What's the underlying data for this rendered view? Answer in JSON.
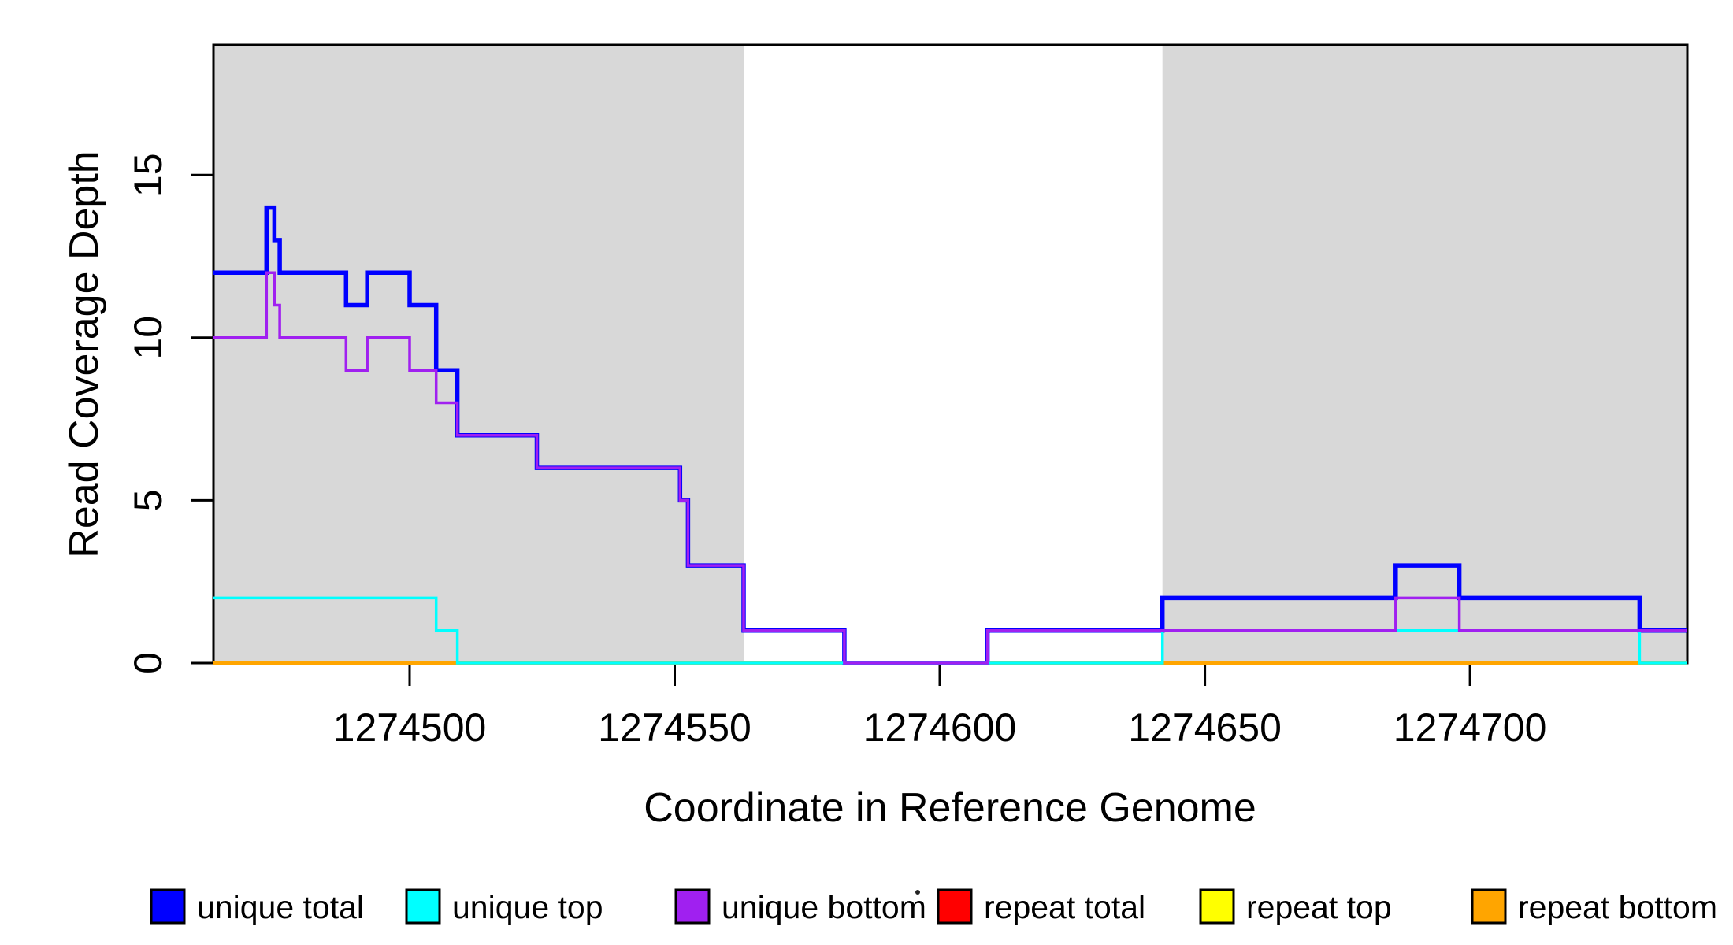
{
  "chart_data": {
    "type": "line",
    "subtype": "step",
    "title": "",
    "xlabel": "Coordinate in Reference Genome",
    "ylabel": "Read Coverage Depth",
    "xlim": [
      1274463,
      1274741
    ],
    "ylim": [
      0,
      19
    ],
    "x_ticks": [
      1274500,
      1274550,
      1274600,
      1274650,
      1274700
    ],
    "x_tick_labels": [
      "1274500",
      "1274550",
      "1274600",
      "1274650",
      "1274700"
    ],
    "y_ticks": [
      0,
      5,
      10,
      15
    ],
    "y_tick_labels": [
      "0",
      "5",
      "10",
      "15"
    ],
    "grid": false,
    "plot_background": "#ffffff",
    "axis_color": "#000000",
    "shaded_regions": [
      {
        "name": "shaded-region-left",
        "x0": 1274463,
        "x1": 1274563,
        "color": "#d8d8d8"
      },
      {
        "name": "shaded-region-right",
        "x0": 1274642,
        "x1": 1274741,
        "color": "#d8d8d8"
      }
    ],
    "series": [
      {
        "name": "unique total",
        "color": "#0000ff",
        "lwd": 5.5,
        "points": [
          [
            1274463,
            12
          ],
          [
            1274473,
            14
          ],
          [
            1274474.5,
            13
          ],
          [
            1274475.5,
            12
          ],
          [
            1274488,
            11
          ],
          [
            1274492,
            12
          ],
          [
            1274500,
            11
          ],
          [
            1274505,
            9
          ],
          [
            1274509,
            7
          ],
          [
            1274524,
            6
          ],
          [
            1274551,
            5
          ],
          [
            1274552.5,
            3
          ],
          [
            1274563,
            1
          ],
          [
            1274582,
            0
          ],
          [
            1274609,
            1
          ],
          [
            1274642,
            2
          ],
          [
            1274686,
            3
          ],
          [
            1274698,
            2
          ],
          [
            1274732,
            1
          ]
        ]
      },
      {
        "name": "unique top",
        "color": "#00ffff",
        "lwd": 3.5,
        "points": [
          [
            1274463,
            2
          ],
          [
            1274505,
            1
          ],
          [
            1274509,
            0
          ],
          [
            1274642,
            1
          ],
          [
            1274732,
            0
          ]
        ]
      },
      {
        "name": "unique bottom",
        "color": "#a020f0",
        "lwd": 3.5,
        "points": [
          [
            1274463,
            10
          ],
          [
            1274473,
            12
          ],
          [
            1274474.5,
            11
          ],
          [
            1274475.5,
            10
          ],
          [
            1274488,
            9
          ],
          [
            1274492,
            10
          ],
          [
            1274500,
            9
          ],
          [
            1274505,
            8
          ],
          [
            1274509,
            7
          ],
          [
            1274524,
            6
          ],
          [
            1274551,
            5
          ],
          [
            1274552.5,
            3
          ],
          [
            1274563,
            1
          ],
          [
            1274582,
            0
          ],
          [
            1274609,
            1
          ],
          [
            1274686,
            2
          ],
          [
            1274698,
            1
          ]
        ]
      },
      {
        "name": "repeat total",
        "color": "#ff0000",
        "lwd": 4.5,
        "points": [
          [
            1274463,
            0
          ]
        ]
      },
      {
        "name": "repeat top",
        "color": "#ffff00",
        "lwd": 4.5,
        "points": [
          [
            1274463,
            0
          ]
        ]
      },
      {
        "name": "repeat bottom",
        "color": "#ffa500",
        "lwd": 4.5,
        "points": [
          [
            1274463,
            0
          ]
        ]
      }
    ],
    "draw_order": [
      3,
      4,
      5,
      0,
      1,
      2
    ],
    "legend": {
      "position": "bottom",
      "items": [
        {
          "label": "unique total",
          "color": "#0000ff"
        },
        {
          "label": "unique top",
          "color": "#00ffff"
        },
        {
          "label": "unique bottom",
          "color": "#a020f0"
        },
        {
          "label": "repeat total",
          "color": "#ff0000"
        },
        {
          "label": "repeat top",
          "color": "#ffff00"
        },
        {
          "label": "repeat bottom",
          "color": "#ffa500"
        }
      ]
    }
  }
}
